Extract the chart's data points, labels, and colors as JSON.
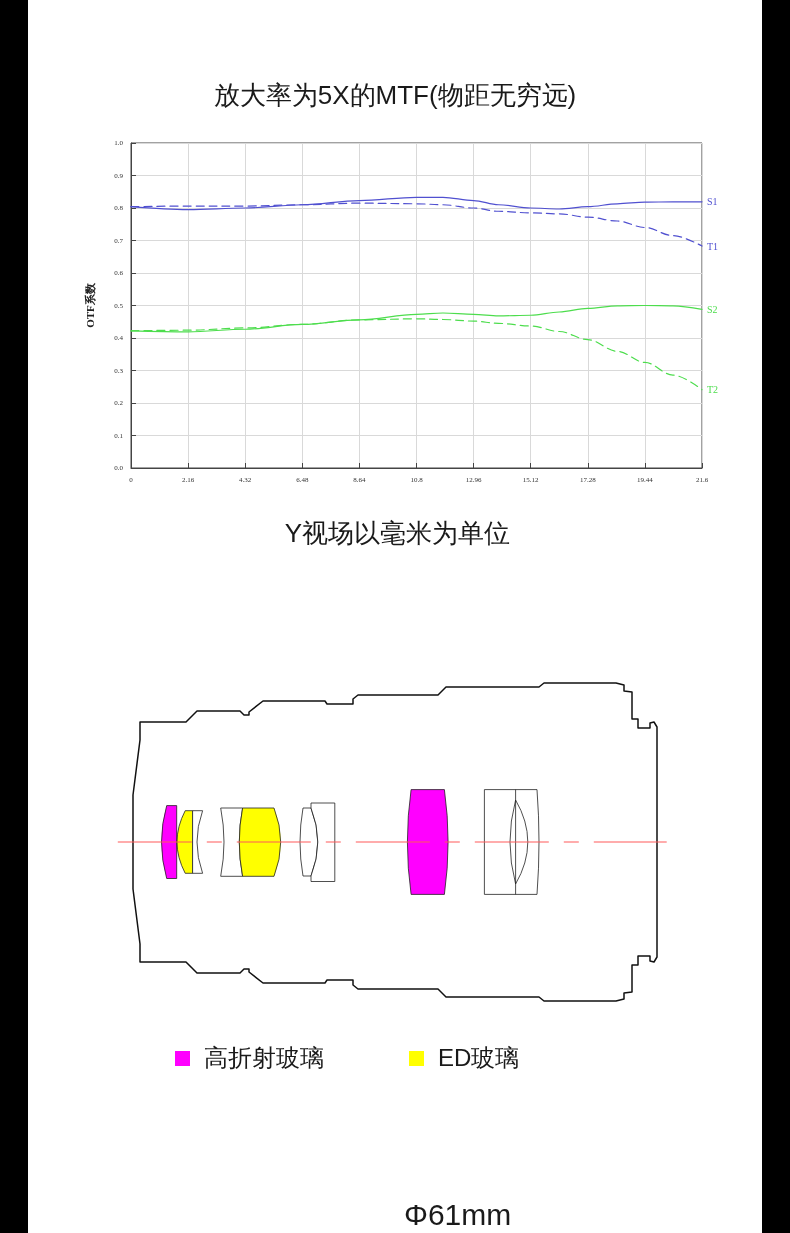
{
  "chart_data": {
    "type": "line",
    "title": "放大率为5X的MTF(物距无穷远)",
    "xlabel": "Y视场以毫米为单位",
    "ylabel": "OTF系数",
    "x": [
      0,
      2.16,
      4.32,
      6.48,
      8.64,
      10.8,
      11.8,
      12.96,
      13.9,
      15.12,
      16.2,
      17.28,
      18.4,
      19.44,
      20.5,
      21.6
    ],
    "series": [
      {
        "name": "S1",
        "color": "#5050d0",
        "line_style": "solid",
        "values": [
          0.804,
          0.795,
          0.8,
          0.81,
          0.823,
          0.833,
          0.833,
          0.823,
          0.81,
          0.8,
          0.797,
          0.804,
          0.813,
          0.818,
          0.819,
          0.819
        ]
      },
      {
        "name": "T1",
        "color": "#5050d0",
        "line_style": "dashed",
        "values": [
          0.804,
          0.806,
          0.806,
          0.81,
          0.815,
          0.813,
          0.81,
          0.8,
          0.79,
          0.785,
          0.782,
          0.772,
          0.76,
          0.74,
          0.715,
          0.683
        ]
      },
      {
        "name": "S2",
        "color": "#4ddd4d",
        "line_style": "solid",
        "values": [
          0.422,
          0.419,
          0.427,
          0.442,
          0.456,
          0.473,
          0.477,
          0.473,
          0.468,
          0.47,
          0.48,
          0.491,
          0.499,
          0.5,
          0.499,
          0.488
        ]
      },
      {
        "name": "T2",
        "color": "#4ddd4d",
        "line_style": "dashed",
        "values": [
          0.422,
          0.424,
          0.431,
          0.442,
          0.456,
          0.459,
          0.457,
          0.452,
          0.445,
          0.437,
          0.42,
          0.395,
          0.359,
          0.325,
          0.286,
          0.241
        ]
      }
    ],
    "xlim": [
      0,
      21.6
    ],
    "ylim": [
      0,
      1
    ],
    "xticks": [
      0,
      2.16,
      4.32,
      6.48,
      8.64,
      10.8,
      12.96,
      15.12,
      17.28,
      19.44,
      21.6
    ],
    "yticks": [
      {
        "value": 0,
        "label": "0.0"
      },
      0.1,
      0.2,
      0.3,
      0.4,
      0.5,
      0.6,
      0.7,
      0.8,
      0.9,
      {
        "value": 1,
        "label": "1.0"
      }
    ],
    "grid": true,
    "marker": "none",
    "annotations": [
      "高折射玻璃",
      "ED玻璃",
      "Φ61mm"
    ]
  }
}
